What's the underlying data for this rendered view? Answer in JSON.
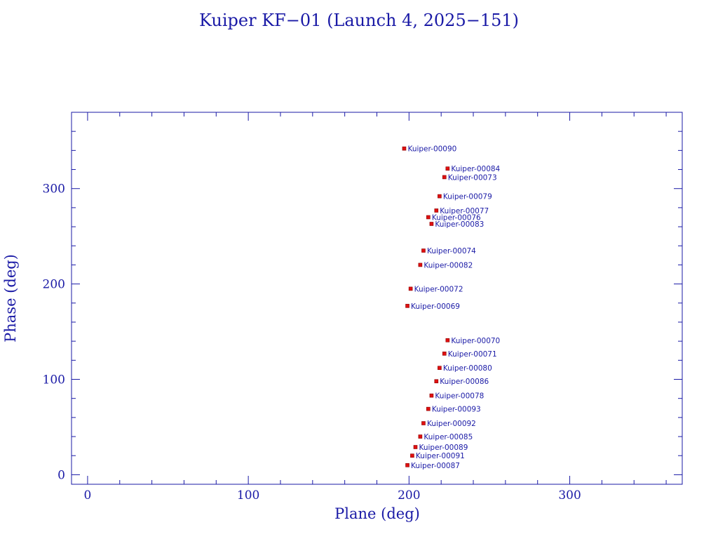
{
  "chart_data": {
    "type": "scatter",
    "title": "Kuiper KF−01 (Launch 4, 2025−151)",
    "xlabel": "Plane (deg)",
    "ylabel": "Phase (deg)",
    "xlim": [
      -10,
      370
    ],
    "ylim": [
      -10,
      380
    ],
    "x_ticks_major": [
      0,
      100,
      200,
      300
    ],
    "y_ticks_major": [
      0,
      100,
      200,
      300
    ],
    "x_tick_labels": [
      "0",
      "100",
      "200",
      "300"
    ],
    "y_tick_labels": [
      "0",
      "100",
      "200",
      "300"
    ],
    "grid": false,
    "legend": "none",
    "colors": {
      "axes": "#1a1aa6",
      "points": "#e01010"
    },
    "points": [
      {
        "label": "Kuiper-00090",
        "x": 197,
        "y": 342
      },
      {
        "label": "Kuiper-00084",
        "x": 224,
        "y": 321
      },
      {
        "label": "Kuiper-00073",
        "x": 222,
        "y": 312
      },
      {
        "label": "Kuiper-00079",
        "x": 219,
        "y": 292
      },
      {
        "label": "Kuiper-00077",
        "x": 217,
        "y": 277
      },
      {
        "label": "Kuiper-00076",
        "x": 212,
        "y": 270
      },
      {
        "label": "Kuiper-00083",
        "x": 214,
        "y": 263
      },
      {
        "label": "Kuiper-00074",
        "x": 209,
        "y": 235
      },
      {
        "label": "Kuiper-00082",
        "x": 207,
        "y": 220
      },
      {
        "label": "Kuiper-00072",
        "x": 201,
        "y": 195
      },
      {
        "label": "Kuiper-00069",
        "x": 199,
        "y": 177
      },
      {
        "label": "Kuiper-00070",
        "x": 224,
        "y": 141
      },
      {
        "label": "Kuiper-00071",
        "x": 222,
        "y": 127
      },
      {
        "label": "Kuiper-00080",
        "x": 219,
        "y": 112
      },
      {
        "label": "Kuiper-00086",
        "x": 217,
        "y": 98
      },
      {
        "label": "Kuiper-00078",
        "x": 214,
        "y": 83
      },
      {
        "label": "Kuiper-00093",
        "x": 212,
        "y": 69
      },
      {
        "label": "Kuiper-00092",
        "x": 209,
        "y": 54
      },
      {
        "label": "Kuiper-00085",
        "x": 207,
        "y": 40
      },
      {
        "label": "Kuiper-00089",
        "x": 204,
        "y": 29
      },
      {
        "label": "Kuiper-00091",
        "x": 202,
        "y": 20
      },
      {
        "label": "Kuiper-00087",
        "x": 199,
        "y": 10
      }
    ]
  }
}
